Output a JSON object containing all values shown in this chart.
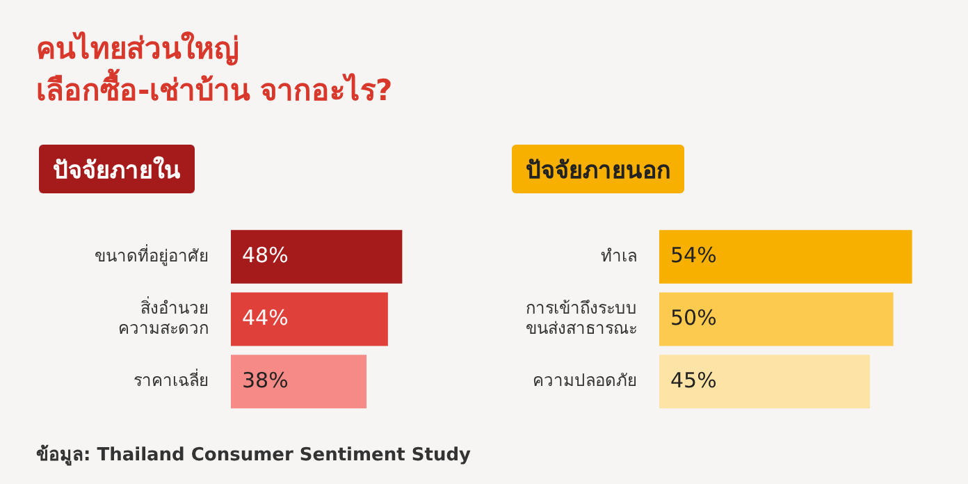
{
  "chart_data": [
    {
      "type": "other",
      "title": "คนไทยส่วนใหญ่\nเลือกซื้อ-เช่าบ้าน จากอะไร?",
      "annotations": [
        "ข้อมูล: Thailand Consumer Sentiment Study"
      ]
    },
    {
      "type": "bar",
      "orientation": "horizontal",
      "title": "ปัจจัยภายใน",
      "categories": [
        "ขนาดที่อยู่อาศัย",
        "สิ่งอำนวย\nความสะดวก",
        "ราคาเฉลี่ย"
      ],
      "values": [
        48,
        44,
        38
      ],
      "value_labels": [
        "48%",
        "44%",
        "38%"
      ],
      "colors": [
        "#a51b1b",
        "#e0403a",
        "#f58a86"
      ]
    },
    {
      "type": "bar",
      "orientation": "horizontal",
      "title": "ปัจจัยภายนอก",
      "categories": [
        "ทำเล",
        "การเข้าถึงระบบ\nขนส่งสาธารณะ",
        "ความปลอดภัย"
      ],
      "values": [
        54,
        50,
        45
      ],
      "value_labels": [
        "54%",
        "50%",
        "45%"
      ],
      "colors": [
        "#f7b000",
        "#fbca4e",
        "#fde3a6"
      ]
    }
  ]
}
